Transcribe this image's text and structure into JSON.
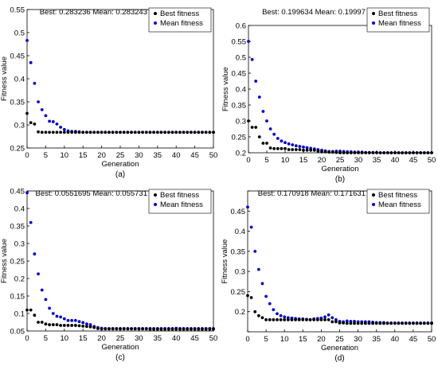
{
  "figure": {
    "shared": {
      "xlabel": "Generation",
      "ylabel": "Fitness value",
      "best_name": "Best fitness",
      "mean_name": "Mean fitness",
      "best_color": "#000000",
      "mean_color": "#0000cc"
    }
  },
  "chart_data": [
    {
      "type": "scatter",
      "panel_label": "(a)",
      "title": "Best: 0.283236 Mean: 0.283243",
      "xlabel": "Generation",
      "ylabel": "Fitness value",
      "xlim": [
        0,
        50
      ],
      "ylim": [
        0.25,
        0.55
      ],
      "xticks": [
        0,
        5,
        10,
        15,
        20,
        25,
        30,
        35,
        40,
        45,
        50
      ],
      "yticks": [
        0.25,
        0.3,
        0.35,
        0.4,
        0.45,
        0.5,
        0.55
      ],
      "ytick_labels": [
        "0.25",
        "0.3",
        "0.35",
        "0.4",
        "0.45",
        "0.5",
        "0.55"
      ],
      "legend": "top-right",
      "grid": false,
      "x": [
        0,
        1,
        2,
        3,
        4,
        5,
        6,
        7,
        8,
        9,
        10,
        11,
        12,
        13,
        14,
        15,
        16,
        17,
        18,
        19,
        20,
        21,
        22,
        23,
        24,
        25,
        26,
        27,
        28,
        29,
        30,
        31,
        32,
        33,
        34,
        35,
        36,
        37,
        38,
        39,
        40,
        41,
        42,
        43,
        44,
        45,
        46,
        47,
        48,
        49,
        50
      ],
      "series": [
        {
          "name": "Best fitness",
          "color": "#000000",
          "values": [
            0.325,
            0.305,
            0.302,
            0.285,
            0.284,
            0.284,
            0.284,
            0.284,
            0.284,
            0.284,
            0.284,
            0.284,
            0.284,
            0.284,
            0.284,
            0.284,
            0.284,
            0.284,
            0.284,
            0.284,
            0.284,
            0.284,
            0.284,
            0.284,
            0.284,
            0.284,
            0.284,
            0.284,
            0.284,
            0.284,
            0.284,
            0.284,
            0.284,
            0.284,
            0.284,
            0.284,
            0.284,
            0.284,
            0.284,
            0.284,
            0.284,
            0.284,
            0.284,
            0.284,
            0.284,
            0.284,
            0.284,
            0.284,
            0.284,
            0.284,
            0.284
          ]
        },
        {
          "name": "Mean fitness",
          "color": "#0000cc",
          "values": [
            0.483,
            0.435,
            0.39,
            0.35,
            0.333,
            0.32,
            0.308,
            0.307,
            0.302,
            0.295,
            0.29,
            0.287,
            0.286,
            0.286,
            0.285,
            0.284,
            0.284,
            0.284,
            0.284,
            0.284,
            0.284,
            0.284,
            0.284,
            0.284,
            0.284,
            0.284,
            0.284,
            0.284,
            0.284,
            0.284,
            0.284,
            0.284,
            0.284,
            0.284,
            0.284,
            0.284,
            0.284,
            0.284,
            0.284,
            0.284,
            0.284,
            0.284,
            0.284,
            0.284,
            0.284,
            0.284,
            0.284,
            0.284,
            0.284,
            0.284,
            0.284
          ]
        }
      ]
    },
    {
      "type": "scatter",
      "panel_label": "(b)",
      "title": "Best: 0.199634 Mean: 0.19997",
      "xlabel": "Generation",
      "ylabel": "Fitness value",
      "xlim": [
        0,
        50
      ],
      "ylim": [
        0.2,
        0.6
      ],
      "xticks": [
        0,
        5,
        10,
        15,
        20,
        25,
        30,
        35,
        40,
        45,
        50
      ],
      "yticks": [
        0.2,
        0.25,
        0.3,
        0.35,
        0.4,
        0.45,
        0.5,
        0.55,
        0.6
      ],
      "ytick_labels": [
        "0.2",
        "0.25",
        "0.3",
        "0.35",
        "0.4",
        "0.45",
        "0.5",
        "0.55",
        "0.6"
      ],
      "legend": "top-right",
      "grid": false,
      "x": [
        0,
        1,
        2,
        3,
        4,
        5,
        6,
        7,
        8,
        9,
        10,
        11,
        12,
        13,
        14,
        15,
        16,
        17,
        18,
        19,
        20,
        21,
        22,
        23,
        24,
        25,
        26,
        27,
        28,
        29,
        30,
        31,
        32,
        33,
        34,
        35,
        36,
        37,
        38,
        39,
        40,
        41,
        42,
        43,
        44,
        45,
        46,
        47,
        48,
        49,
        50
      ],
      "series": [
        {
          "name": "Best fitness",
          "color": "#000000",
          "values": [
            0.3,
            0.28,
            0.28,
            0.25,
            0.23,
            0.23,
            0.215,
            0.213,
            0.213,
            0.213,
            0.213,
            0.21,
            0.21,
            0.21,
            0.21,
            0.208,
            0.208,
            0.208,
            0.208,
            0.205,
            0.203,
            0.203,
            0.202,
            0.202,
            0.201,
            0.2,
            0.2,
            0.2,
            0.2,
            0.2,
            0.2,
            0.2,
            0.2,
            0.2,
            0.2,
            0.2,
            0.2,
            0.2,
            0.2,
            0.2,
            0.2,
            0.2,
            0.2,
            0.2,
            0.2,
            0.2,
            0.2,
            0.2,
            0.2,
            0.2,
            0.2
          ]
        },
        {
          "name": "Mean fitness",
          "color": "#0000cc",
          "values": [
            0.55,
            0.493,
            0.425,
            0.375,
            0.33,
            0.3,
            0.275,
            0.258,
            0.245,
            0.237,
            0.232,
            0.228,
            0.225,
            0.222,
            0.22,
            0.218,
            0.216,
            0.214,
            0.212,
            0.21,
            0.208,
            0.206,
            0.204,
            0.204,
            0.205,
            0.205,
            0.204,
            0.203,
            0.203,
            0.202,
            0.202,
            0.202,
            0.201,
            0.201,
            0.201,
            0.201,
            0.2,
            0.2,
            0.2,
            0.2,
            0.2,
            0.2,
            0.2,
            0.2,
            0.2,
            0.2,
            0.2,
            0.2,
            0.2,
            0.2,
            0.2
          ]
        }
      ]
    },
    {
      "type": "scatter",
      "panel_label": "(c)",
      "title": "Best: 0.0551695 Mean: 0.055731",
      "xlabel": "Generation",
      "ylabel": "Fitness value",
      "xlim": [
        0,
        50
      ],
      "ylim": [
        0.05,
        0.45
      ],
      "xticks": [
        0,
        5,
        10,
        15,
        20,
        25,
        30,
        35,
        40,
        45,
        50
      ],
      "yticks": [
        0.05,
        0.1,
        0.15,
        0.2,
        0.25,
        0.3,
        0.35,
        0.4,
        0.45
      ],
      "ytick_labels": [
        "0.05",
        "0.1",
        "0.15",
        "0.2",
        "0.25",
        "0.3",
        "0.35",
        "0.4",
        "0.45"
      ],
      "legend": "top-right",
      "grid": false,
      "x": [
        0,
        1,
        2,
        3,
        4,
        5,
        6,
        7,
        8,
        9,
        10,
        11,
        12,
        13,
        14,
        15,
        16,
        17,
        18,
        19,
        20,
        21,
        22,
        23,
        24,
        25,
        26,
        27,
        28,
        29,
        30,
        31,
        32,
        33,
        34,
        35,
        36,
        37,
        38,
        39,
        40,
        41,
        42,
        43,
        44,
        45,
        46,
        47,
        48,
        49,
        50
      ],
      "series": [
        {
          "name": "Best fitness",
          "color": "#000000",
          "values": [
            0.11,
            0.11,
            0.095,
            0.075,
            0.075,
            0.07,
            0.068,
            0.068,
            0.068,
            0.066,
            0.066,
            0.066,
            0.066,
            0.066,
            0.065,
            0.064,
            0.063,
            0.062,
            0.06,
            0.057,
            0.056,
            0.056,
            0.056,
            0.056,
            0.056,
            0.056,
            0.056,
            0.056,
            0.056,
            0.056,
            0.056,
            0.056,
            0.056,
            0.055,
            0.055,
            0.055,
            0.055,
            0.055,
            0.055,
            0.055,
            0.055,
            0.055,
            0.055,
            0.055,
            0.055,
            0.055,
            0.055,
            0.055,
            0.055,
            0.055,
            0.055
          ]
        },
        {
          "name": "Mean fitness",
          "color": "#0000cc",
          "values": [
            0.445,
            0.36,
            0.27,
            0.213,
            0.167,
            0.14,
            0.115,
            0.1,
            0.092,
            0.09,
            0.085,
            0.08,
            0.08,
            0.08,
            0.077,
            0.074,
            0.07,
            0.068,
            0.063,
            0.06,
            0.058,
            0.057,
            0.057,
            0.057,
            0.057,
            0.057,
            0.057,
            0.057,
            0.057,
            0.057,
            0.057,
            0.057,
            0.057,
            0.057,
            0.057,
            0.057,
            0.057,
            0.057,
            0.057,
            0.057,
            0.058,
            0.057,
            0.057,
            0.057,
            0.057,
            0.057,
            0.057,
            0.057,
            0.057,
            0.057,
            0.057
          ]
        }
      ]
    },
    {
      "type": "scatter",
      "panel_label": "(d)",
      "title": "Best: 0.170918 Mean: 0.171631",
      "xlabel": "Generation",
      "ylabel": "Fitness value",
      "xlim": [
        0,
        50
      ],
      "ylim": [
        0.15,
        0.5
      ],
      "xticks": [
        0,
        5,
        10,
        15,
        20,
        25,
        30,
        35,
        40,
        45,
        50
      ],
      "yticks": [
        0.15,
        0.2,
        0.25,
        0.3,
        0.35,
        0.4,
        0.45,
        0.5
      ],
      "ytick_labels": [
        "",
        "0.2",
        "0.25",
        "0.3",
        "0.35",
        "0.4",
        "0.45",
        ""
      ],
      "legend": "top-right",
      "grid": false,
      "x": [
        0,
        1,
        2,
        3,
        4,
        5,
        6,
        7,
        8,
        9,
        10,
        11,
        12,
        13,
        14,
        15,
        16,
        17,
        18,
        19,
        20,
        21,
        22,
        23,
        24,
        25,
        26,
        27,
        28,
        29,
        30,
        31,
        32,
        33,
        34,
        35,
        36,
        37,
        38,
        39,
        40,
        41,
        42,
        43,
        44,
        45,
        46,
        47,
        48,
        49,
        50
      ],
      "series": [
        {
          "name": "Best fitness",
          "color": "#000000",
          "values": [
            0.24,
            0.235,
            0.2,
            0.19,
            0.185,
            0.18,
            0.18,
            0.18,
            0.18,
            0.18,
            0.18,
            0.18,
            0.18,
            0.18,
            0.18,
            0.18,
            0.18,
            0.18,
            0.18,
            0.18,
            0.18,
            0.18,
            0.18,
            0.175,
            0.175,
            0.172,
            0.172,
            0.171,
            0.171,
            0.171,
            0.171,
            0.171,
            0.171,
            0.171,
            0.171,
            0.171,
            0.171,
            0.171,
            0.171,
            0.171,
            0.171,
            0.171,
            0.171,
            0.171,
            0.171,
            0.171,
            0.171,
            0.171,
            0.171,
            0.171,
            0.171
          ]
        },
        {
          "name": "Mean fitness",
          "color": "#0000cc",
          "values": [
            0.46,
            0.41,
            0.35,
            0.305,
            0.27,
            0.238,
            0.22,
            0.205,
            0.195,
            0.19,
            0.187,
            0.185,
            0.184,
            0.183,
            0.182,
            0.182,
            0.181,
            0.18,
            0.182,
            0.183,
            0.184,
            0.187,
            0.192,
            0.185,
            0.18,
            0.176,
            0.175,
            0.177,
            0.176,
            0.176,
            0.175,
            0.175,
            0.175,
            0.175,
            0.174,
            0.173,
            0.173,
            0.173,
            0.172,
            0.172,
            0.172,
            0.172,
            0.172,
            0.172,
            0.172,
            0.172,
            0.172,
            0.172,
            0.172,
            0.172,
            0.172
          ]
        }
      ]
    }
  ]
}
